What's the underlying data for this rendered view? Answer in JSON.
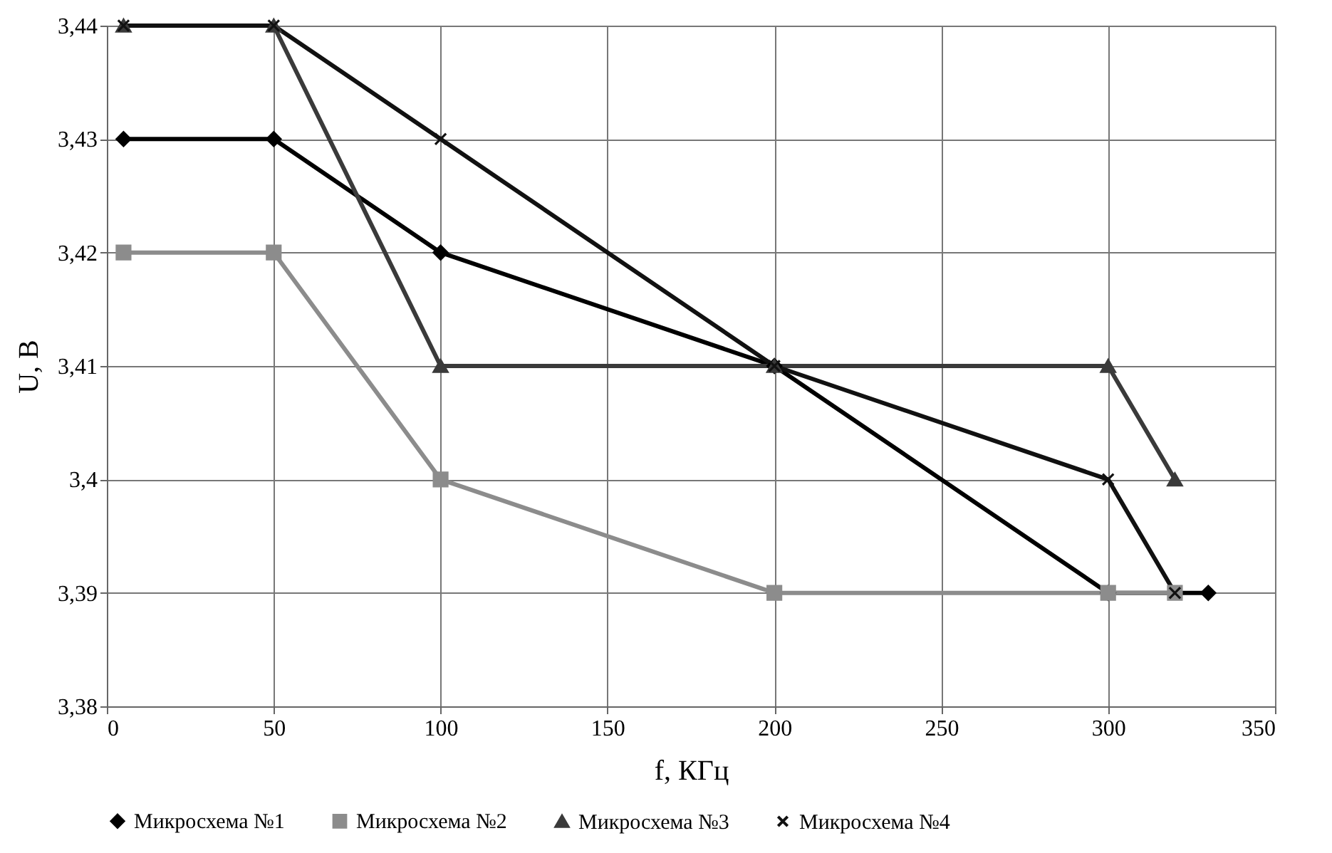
{
  "chart_data": {
    "type": "line",
    "xlabel": "f, КГц",
    "ylabel": "U, В",
    "xlim": [
      0,
      350
    ],
    "xticks": [
      0,
      50,
      100,
      150,
      200,
      250,
      300,
      350
    ],
    "ylim": [
      3.38,
      3.44
    ],
    "yticks": [
      {
        "value": 3.38,
        "label": "3,38"
      },
      {
        "value": 3.39,
        "label": "3,39"
      },
      {
        "value": 3.4,
        "label": "3,4"
      },
      {
        "value": 3.41,
        "label": "3,41"
      },
      {
        "value": 3.42,
        "label": "3,42"
      },
      {
        "value": 3.43,
        "label": "3,43"
      },
      {
        "value": 3.44,
        "label": "3,44"
      }
    ],
    "grid": true,
    "legend": "bottom",
    "line_style": "solid",
    "series": [
      {
        "name": "Микросхема №1",
        "color": "#000000",
        "marker": "diamond",
        "x": [
          5,
          50,
          100,
          200,
          300,
          330
        ],
        "values": [
          3.43,
          3.43,
          3.42,
          3.41,
          3.39,
          3.39
        ]
      },
      {
        "name": "Микросхема №2",
        "color": "#8c8c8c",
        "marker": "square",
        "x": [
          5,
          50,
          100,
          200,
          300,
          320
        ],
        "values": [
          3.42,
          3.42,
          3.4,
          3.39,
          3.39,
          3.39
        ]
      },
      {
        "name": "Микросхема №3",
        "color": "#3a3a3a",
        "marker": "triangle",
        "x": [
          5,
          50,
          100,
          200,
          300,
          320
        ],
        "values": [
          3.44,
          3.44,
          3.41,
          3.41,
          3.41,
          3.4
        ]
      },
      {
        "name": "Микросхема №4",
        "color": "#111111",
        "marker": "cross",
        "x": [
          5,
          50,
          100,
          200,
          300,
          320
        ],
        "values": [
          3.44,
          3.44,
          3.43,
          3.41,
          3.4,
          3.39
        ]
      }
    ]
  }
}
